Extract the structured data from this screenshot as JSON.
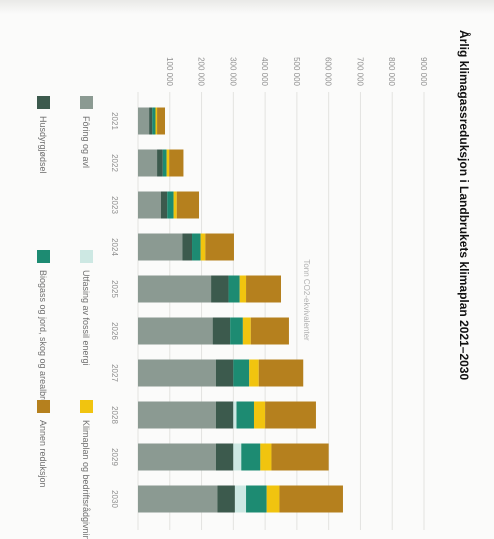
{
  "chart_data": {
    "type": "bar",
    "orientation": "horizontal-stacked",
    "title": "Årlig klimagassreduksjon i Landbrukets klimaplan 2021–2030",
    "ylabel": "Tonn CO2-ekvivalenter",
    "xlim": [
      0,
      900000
    ],
    "tick_values": [
      0,
      100000,
      200000,
      300000,
      400000,
      500000,
      600000,
      700000,
      800000,
      900000
    ],
    "tick_labels": [
      "",
      "100 000",
      "200 000",
      "300 000",
      "400 000",
      "500 000",
      "600 000",
      "700 000",
      "800 000",
      "900 000"
    ],
    "grid": true,
    "legend_position": "bottom",
    "categories": [
      "2021",
      "2022",
      "2023",
      "2024",
      "2025",
      "2026",
      "2027",
      "2028",
      "2029",
      "2030"
    ],
    "series": [
      {
        "name": "Fôring og avl",
        "color": "#8b9a92",
        "values": [
          35000,
          60000,
          72000,
          140000,
          230000,
          235000,
          245000,
          245000,
          245000,
          250000
        ]
      },
      {
        "name": "Husdyrgjødsel",
        "color": "#3c5a4d",
        "values": [
          10000,
          18000,
          20000,
          30000,
          55000,
          55000,
          55000,
          55000,
          55000,
          55000
        ]
      },
      {
        "name": "Utfasing av fossil energi",
        "color": "#cde8e3",
        "values": [
          0,
          0,
          0,
          0,
          0,
          0,
          0,
          10000,
          25000,
          35000
        ]
      },
      {
        "name": "Biogass og jord, skog og arealbruk",
        "color": "#1d8b72",
        "values": [
          10000,
          12000,
          20000,
          27000,
          35000,
          40000,
          50000,
          55000,
          60000,
          65000
        ]
      },
      {
        "name": "Klimaplan og bedriftsrådgivning",
        "color": "#f1c40f",
        "values": [
          5000,
          8000,
          10000,
          15000,
          20000,
          25000,
          30000,
          35000,
          35000,
          40000
        ]
      },
      {
        "name": "Annen reduksjon",
        "color": "#b5801e",
        "values": [
          25000,
          45000,
          70000,
          90000,
          110000,
          120000,
          140000,
          160000,
          180000,
          200000
        ]
      }
    ]
  }
}
